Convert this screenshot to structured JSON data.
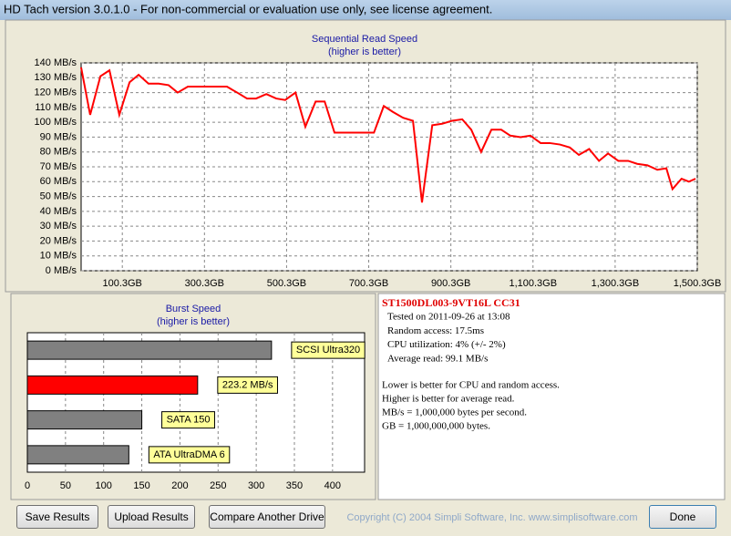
{
  "window": {
    "title": "HD Tach version 3.0.1.0  - For non-commercial or evaluation use only, see license agreement."
  },
  "chart_data": [
    {
      "type": "line",
      "title": "Sequential Read Speed",
      "subtitle": "(higher is better)",
      "x": [
        0,
        22,
        47,
        69,
        93,
        118,
        140,
        164,
        189,
        213,
        235,
        260,
        284,
        309,
        331,
        355,
        380,
        404,
        426,
        451,
        475,
        497,
        522,
        546,
        571,
        593,
        617,
        642,
        666,
        688,
        713,
        737,
        759,
        784,
        808,
        830,
        855,
        879,
        903,
        928,
        950,
        974,
        999,
        1023,
        1045,
        1070,
        1094,
        1119,
        1141,
        1166,
        1190,
        1212,
        1237,
        1261,
        1283,
        1308,
        1332,
        1354,
        1379,
        1403,
        1425,
        1440,
        1462,
        1480,
        1496
      ],
      "values": [
        137,
        105,
        131,
        135,
        105,
        127,
        132,
        126,
        126,
        125,
        120,
        124,
        124,
        124,
        124,
        124,
        120,
        116,
        116,
        119,
        116,
        115,
        120,
        97,
        114,
        114,
        93,
        93,
        93,
        93,
        93,
        111,
        107,
        103,
        101,
        46,
        98,
        99,
        101,
        102,
        95,
        80,
        95,
        95,
        91,
        90,
        91,
        86,
        86,
        85,
        83,
        78,
        82,
        74,
        79,
        74,
        74,
        72,
        71,
        68,
        69,
        55,
        62,
        60,
        62
      ],
      "color": "#ff0000",
      "xlim": [
        0,
        1500.3
      ],
      "ylim": [
        0,
        140
      ],
      "grid": true,
      "xticks": [
        {
          "value": 100.3,
          "label": "100.3GB"
        },
        {
          "value": 300.3,
          "label": "300.3GB"
        },
        {
          "value": 500.3,
          "label": "500.3GB"
        },
        {
          "value": 700.3,
          "label": "700.3GB"
        },
        {
          "value": 900.3,
          "label": "900.3GB"
        },
        {
          "value": 1100.3,
          "label": "1,100.3GB"
        },
        {
          "value": 1300.3,
          "label": "1,300.3GB"
        },
        {
          "value": 1500.3,
          "label": "1,500.3GB"
        }
      ],
      "yticks": [
        {
          "value": 0,
          "label": "0 MB/s"
        },
        {
          "value": 10,
          "label": "10 MB/s"
        },
        {
          "value": 20,
          "label": "20 MB/s"
        },
        {
          "value": 30,
          "label": "30 MB/s"
        },
        {
          "value": 40,
          "label": "40 MB/s"
        },
        {
          "value": 50,
          "label": "50 MB/s"
        },
        {
          "value": 60,
          "label": "60 MB/s"
        },
        {
          "value": 70,
          "label": "70 MB/s"
        },
        {
          "value": 80,
          "label": "80 MB/s"
        },
        {
          "value": 90,
          "label": "90 MB/s"
        },
        {
          "value": 100,
          "label": "100 MB/s"
        },
        {
          "value": 110,
          "label": "110 MB/s"
        },
        {
          "value": 120,
          "label": "120 MB/s"
        },
        {
          "value": 130,
          "label": "130 MB/s"
        },
        {
          "value": 140,
          "label": "140 MB/s"
        }
      ]
    },
    {
      "type": "bar",
      "orientation": "horizontal",
      "title": "Burst Speed",
      "subtitle": "(higher is better)",
      "categories": [
        "SCSI Ultra320",
        null,
        "SATA 150",
        "ATA UltraDMA 6"
      ],
      "values": [
        320,
        223.2,
        150,
        133
      ],
      "value_labels": [
        null,
        "223.2 MB/s",
        null,
        null
      ],
      "colors": [
        "#808080",
        "#ff0000",
        "#808080",
        "#808080"
      ],
      "xlim": [
        0,
        442
      ],
      "xticks": [
        0,
        50,
        100,
        150,
        200,
        250,
        300,
        350,
        400
      ],
      "grid": true
    }
  ],
  "info": {
    "drive": "ST1500DL003-9VT16L CC31",
    "lines": [
      "Tested on 2011-09-26 at 13:08",
      "Random access: 17.5ms",
      "CPU utilization: 4% (+/- 2%)",
      "Average read: 99.1 MB/s"
    ],
    "notes": [
      "Lower is better for CPU and random access.",
      "Higher is better for average read.",
      "MB/s = 1,000,000 bytes per second.",
      "GB = 1,000,000,000 bytes."
    ]
  },
  "buttons": [
    "Save Results",
    "Upload Results",
    "Compare Another Drive",
    "Done"
  ],
  "copyright": "Copyright (C) 2004 Simpli Software, Inc. www.simplisoftware.com"
}
